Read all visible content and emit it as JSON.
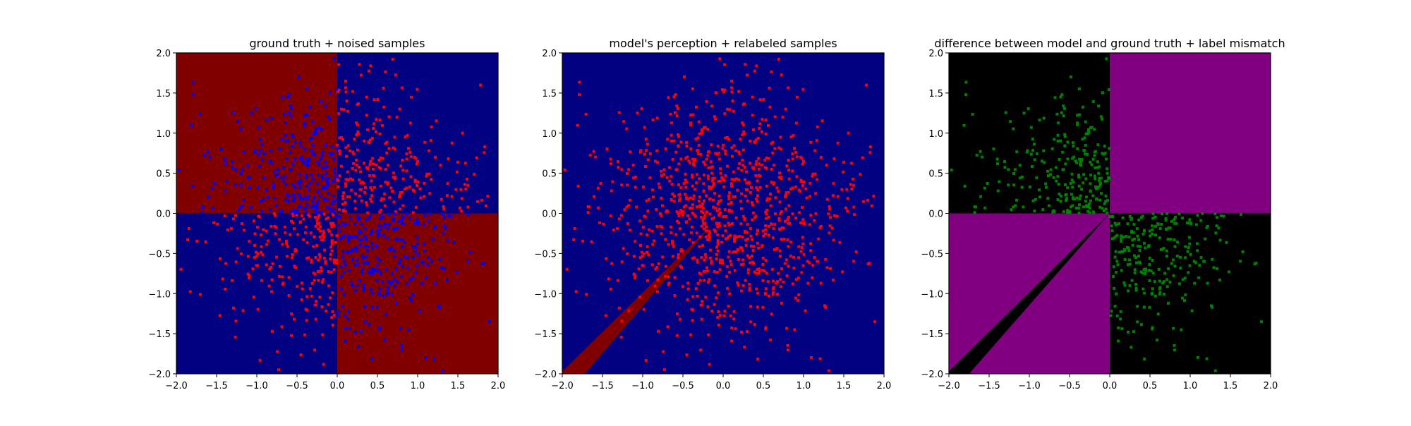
{
  "chart_data": [
    {
      "type": "heatmap",
      "title": "ground truth + noised samples",
      "xlim": [
        -2.0,
        2.0
      ],
      "ylim": [
        -2.0,
        2.0
      ],
      "xticks": [
        "−2.0",
        "−1.5",
        "−1.0",
        "−0.5",
        "0.0",
        "0.5",
        "1.0",
        "1.5",
        "2.0"
      ],
      "yticks": [
        "−2.0",
        "−1.5",
        "−1.0",
        "−0.5",
        "0.0",
        "0.5",
        "1.0",
        "1.5",
        "2.0"
      ],
      "tick_values": [
        -2.0,
        -1.5,
        -1.0,
        -0.5,
        0.0,
        0.5,
        1.0,
        1.5,
        2.0
      ],
      "regions": [
        {
          "name": "top-left quadrant",
          "x": [
            -2,
            0
          ],
          "y": [
            0,
            2
          ],
          "color": "#800000"
        },
        {
          "name": "top-right quadrant",
          "x": [
            0,
            2
          ],
          "y": [
            0,
            2
          ],
          "color": "#000080"
        },
        {
          "name": "bottom-left quadrant",
          "x": [
            -2,
            0
          ],
          "y": [
            -2,
            0
          ],
          "color": "#000080"
        },
        {
          "name": "bottom-right quadrant",
          "x": [
            0,
            2
          ],
          "y": [
            -2,
            0
          ],
          "color": "#800000"
        }
      ],
      "samples": {
        "count": 1000,
        "std": 0.8,
        "color_in_red_region": "#0000ff",
        "color_in_blue_region": "#ff0000"
      }
    },
    {
      "type": "heatmap",
      "title": "model's perception + relabeled samples",
      "xlim": [
        -2.0,
        2.0
      ],
      "ylim": [
        -2.0,
        2.0
      ],
      "xticks": [
        "−2.0",
        "−1.5",
        "−1.0",
        "−0.5",
        "0.0",
        "0.5",
        "1.0",
        "1.5",
        "2.0"
      ],
      "yticks": [
        "−2.0",
        "−1.5",
        "−1.0",
        "−0.5",
        "0.0",
        "0.5",
        "1.0",
        "1.5",
        "2.0"
      ],
      "tick_values": [
        -2.0,
        -1.5,
        -1.0,
        -0.5,
        0.0,
        0.5,
        1.0,
        1.5,
        2.0
      ],
      "background": "#000080",
      "stripe": {
        "polygon": [
          [
            -2,
            -2
          ],
          [
            -2,
            -1.97
          ],
          [
            -0.1,
            -0.1
          ],
          [
            -1.72,
            -2
          ]
        ],
        "color": "#800000"
      },
      "samples": {
        "count": 1000,
        "color": "#ff0000"
      }
    },
    {
      "type": "heatmap",
      "title": "difference between model and ground truth + label mismatch",
      "xlim": [
        -2.0,
        2.0
      ],
      "ylim": [
        -2.0,
        2.0
      ],
      "xticks": [
        "−2.0",
        "−1.5",
        "−1.0",
        "−0.5",
        "0.0",
        "0.5",
        "1.0",
        "1.5",
        "2.0"
      ],
      "yticks": [
        "−2.0",
        "−1.5",
        "−1.0",
        "−0.5",
        "0.0",
        "0.5",
        "1.0",
        "1.5",
        "2.0"
      ],
      "tick_values": [
        -2.0,
        -1.5,
        -1.0,
        -0.5,
        0.0,
        0.5,
        1.0,
        1.5,
        2.0
      ],
      "regions": [
        {
          "name": "top-left quadrant",
          "x": [
            -2,
            0
          ],
          "y": [
            0,
            2
          ],
          "color": "#000000"
        },
        {
          "name": "top-right quadrant",
          "x": [
            0,
            2
          ],
          "y": [
            0,
            2
          ],
          "color": "#800080"
        },
        {
          "name": "bottom-left quadrant",
          "x": [
            -2,
            0
          ],
          "y": [
            -2,
            0
          ],
          "color": "#800080"
        },
        {
          "name": "bottom-right quadrant",
          "x": [
            0,
            2
          ],
          "y": [
            -2,
            0
          ],
          "color": "#000000"
        }
      ],
      "stripe": {
        "polygon": [
          [
            -2,
            -2
          ],
          [
            -2,
            -1.97
          ],
          [
            0,
            0
          ],
          [
            -1.75,
            -2
          ]
        ],
        "color": "#000000"
      },
      "samples": {
        "shown_in": "top-left and bottom-right quadrants",
        "color": "#008000"
      }
    }
  ]
}
